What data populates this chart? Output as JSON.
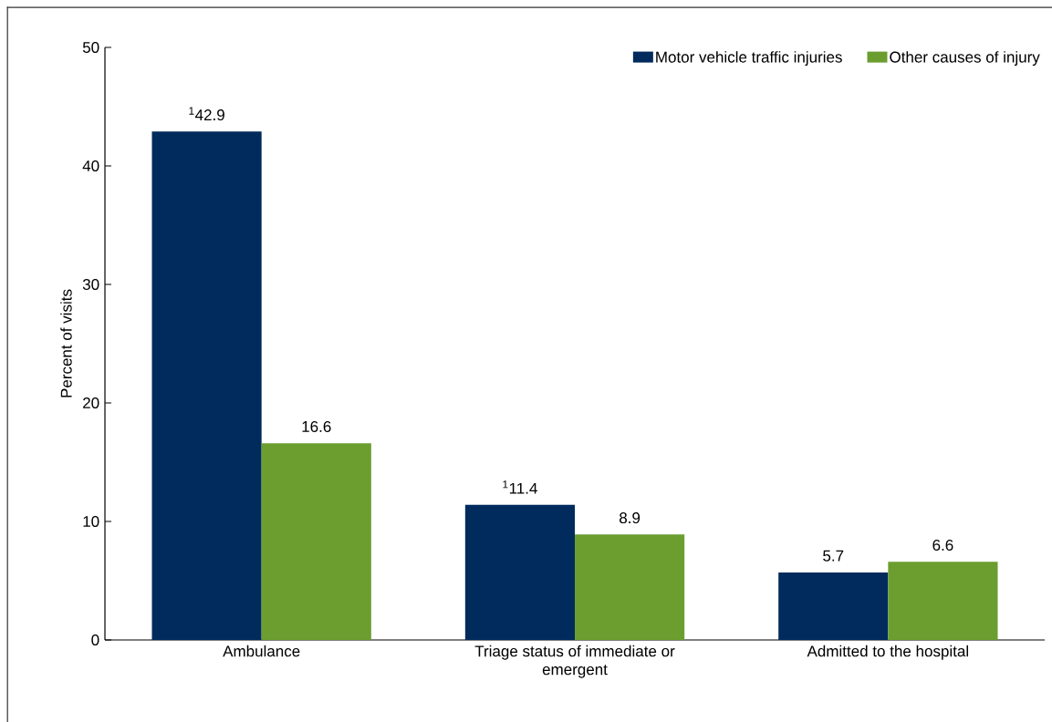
{
  "chart_data": {
    "type": "bar",
    "ylabel": "Percent of visits",
    "categories": [
      "Ambulance",
      "Triage status of immediate or emergent",
      "Admitted to the hospital"
    ],
    "series": [
      {
        "name": "Motor vehicle traffic injuries",
        "color": "#002b5c",
        "values": [
          42.9,
          11.4,
          5.7
        ],
        "value_labels": [
          "$^{1}$42.9",
          "$^{1}$11.4",
          "5.7"
        ]
      },
      {
        "name": "Other causes of injury",
        "color": "#6b9e2f",
        "values": [
          16.6,
          8.9,
          6.6
        ],
        "value_labels": [
          "16.6",
          "8.9",
          "6.6"
        ]
      }
    ],
    "ylim": [
      0,
      50
    ],
    "yticks": [
      0,
      10,
      20,
      30,
      40,
      50
    ],
    "grid": false,
    "legend": "top right"
  }
}
